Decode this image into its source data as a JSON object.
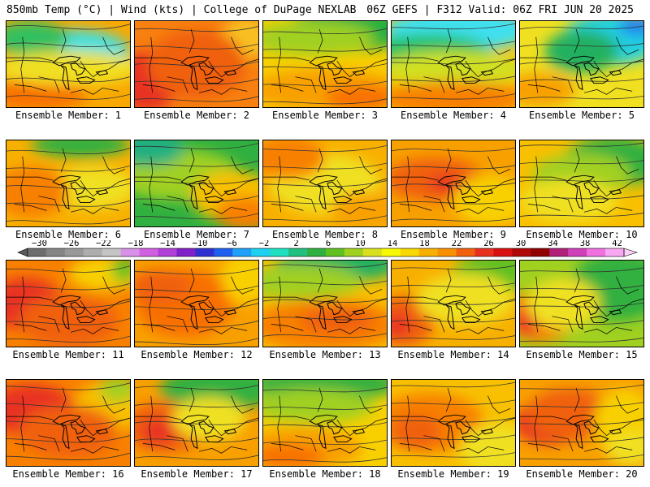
{
  "header": {
    "left": "850mb Temp (°C) | Wind (kts) | College of DuPage NEXLAB",
    "right": "06Z GEFS | F312 Valid: 06Z FRI JUN 20 2025"
  },
  "colorbar": {
    "labels": [
      "-30",
      "-26",
      "-22",
      "-18",
      "-14",
      "-10",
      "-6",
      "-2",
      "2",
      "6",
      "10",
      "14",
      "18",
      "22",
      "26",
      "30",
      "34",
      "38",
      "42"
    ],
    "colors": [
      "#6e6e6e",
      "#858585",
      "#999999",
      "#aeaeae",
      "#c4c4c4",
      "#d890e8",
      "#d060e0",
      "#b040d8",
      "#8020c8",
      "#3030d0",
      "#2060f0",
      "#20a0f8",
      "#20d0f0",
      "#20e0c0",
      "#20c080",
      "#30b040",
      "#60c020",
      "#a0d020",
      "#d8e020",
      "#f8f800",
      "#f8d800",
      "#f8b000",
      "#f89000",
      "#f06010",
      "#e83020",
      "#d81010",
      "#b00808",
      "#900000",
      "#b0207a",
      "#d040b8",
      "#f070e0",
      "#f8a8f0"
    ]
  },
  "panels": [
    {
      "label": "Ensemble Member: 1",
      "base": "#f8a800",
      "blobs": [
        [
          "#40e0e0",
          0.55,
          0.35,
          0.45,
          0.25
        ],
        [
          "#30c060",
          0.2,
          0.2,
          0.3,
          0.2
        ],
        [
          "#f87000",
          0.25,
          0.85,
          0.4,
          0.18
        ],
        [
          "#f0e020",
          0.5,
          0.55,
          0.6,
          0.2
        ]
      ]
    },
    {
      "label": "Ensemble Member: 2",
      "base": "#f88010",
      "blobs": [
        [
          "#e83020",
          0.1,
          0.7,
          0.25,
          0.35
        ],
        [
          "#f8c020",
          0.9,
          0.2,
          0.2,
          0.25
        ],
        [
          "#f06010",
          0.5,
          0.5,
          0.4,
          0.4
        ]
      ]
    },
    {
      "label": "Ensemble Member: 3",
      "base": "#f8d000",
      "blobs": [
        [
          "#20b040",
          0.7,
          0.1,
          0.5,
          0.25
        ],
        [
          "#a0d020",
          0.4,
          0.2,
          0.5,
          0.2
        ],
        [
          "#f8a000",
          0.5,
          0.8,
          0.6,
          0.25
        ],
        [
          "#f87000",
          0.8,
          0.9,
          0.3,
          0.15
        ]
      ]
    },
    {
      "label": "Ensemble Member: 4",
      "base": "#f8c000",
      "blobs": [
        [
          "#40e0f0",
          0.55,
          0.1,
          0.6,
          0.25
        ],
        [
          "#20c060",
          0.3,
          0.35,
          0.5,
          0.2
        ],
        [
          "#d0e020",
          0.5,
          0.55,
          0.6,
          0.2
        ],
        [
          "#f88000",
          0.5,
          0.9,
          0.6,
          0.2
        ]
      ]
    },
    {
      "label": "Ensemble Member: 5",
      "base": "#f0e020",
      "blobs": [
        [
          "#20d0e0",
          0.75,
          0.2,
          0.4,
          0.3
        ],
        [
          "#20b060",
          0.5,
          0.35,
          0.3,
          0.25
        ],
        [
          "#2080f0",
          0.95,
          0.05,
          0.15,
          0.12
        ],
        [
          "#f8a000",
          0.15,
          0.8,
          0.3,
          0.2
        ]
      ]
    },
    {
      "label": "Ensemble Member: 6",
      "base": "#f8b000",
      "blobs": [
        [
          "#30b040",
          0.6,
          0.05,
          0.4,
          0.15
        ],
        [
          "#f0e020",
          0.7,
          0.55,
          0.35,
          0.25
        ],
        [
          "#f88000",
          0.2,
          0.6,
          0.3,
          0.3
        ]
      ]
    },
    {
      "label": "Ensemble Member: 7",
      "base": "#30b040",
      "blobs": [
        [
          "#a0d020",
          0.35,
          0.4,
          0.5,
          0.3
        ],
        [
          "#f8c000",
          0.8,
          0.65,
          0.35,
          0.3
        ],
        [
          "#f88000",
          0.9,
          0.85,
          0.25,
          0.2
        ],
        [
          "#20b080",
          0.1,
          0.1,
          0.3,
          0.2
        ]
      ]
    },
    {
      "label": "Ensemble Member: 8",
      "base": "#f8b000",
      "blobs": [
        [
          "#f0e020",
          0.5,
          0.5,
          0.45,
          0.35
        ],
        [
          "#f88000",
          0.2,
          0.2,
          0.3,
          0.25
        ],
        [
          "#f8a000",
          0.85,
          0.8,
          0.3,
          0.2
        ]
      ]
    },
    {
      "label": "Ensemble Member: 9",
      "base": "#f8a000",
      "blobs": [
        [
          "#f06010",
          0.35,
          0.45,
          0.4,
          0.25
        ],
        [
          "#e83020",
          0.45,
          0.5,
          0.15,
          0.1
        ],
        [
          "#f8d000",
          0.8,
          0.7,
          0.3,
          0.3
        ]
      ]
    },
    {
      "label": "Ensemble Member: 10",
      "base": "#f8c000",
      "blobs": [
        [
          "#30b040",
          0.75,
          0.25,
          0.4,
          0.3
        ],
        [
          "#a0d020",
          0.5,
          0.4,
          0.4,
          0.25
        ],
        [
          "#f0e020",
          0.4,
          0.7,
          0.4,
          0.25
        ]
      ]
    },
    {
      "label": "Ensemble Member: 11",
      "base": "#f88000",
      "blobs": [
        [
          "#e83020",
          0.15,
          0.5,
          0.3,
          0.3
        ],
        [
          "#f8d000",
          0.8,
          0.15,
          0.3,
          0.2
        ],
        [
          "#60c020",
          0.95,
          0.1,
          0.1,
          0.15
        ],
        [
          "#f06010",
          0.5,
          0.7,
          0.4,
          0.3
        ]
      ]
    },
    {
      "label": "Ensemble Member: 12",
      "base": "#f8a000",
      "blobs": [
        [
          "#f87000",
          0.4,
          0.5,
          0.4,
          0.4
        ],
        [
          "#f8d000",
          0.9,
          0.2,
          0.2,
          0.3
        ],
        [
          "#f06010",
          0.2,
          0.3,
          0.25,
          0.2
        ]
      ]
    },
    {
      "label": "Ensemble Member: 13",
      "base": "#f8c000",
      "blobs": [
        [
          "#20b060",
          0.6,
          0.05,
          0.5,
          0.2
        ],
        [
          "#a0d020",
          0.3,
          0.25,
          0.5,
          0.2
        ],
        [
          "#f88000",
          0.5,
          0.75,
          0.6,
          0.3
        ],
        [
          "#f06010",
          0.6,
          0.7,
          0.3,
          0.15
        ]
      ]
    },
    {
      "label": "Ensemble Member: 14",
      "base": "#f8b000",
      "blobs": [
        [
          "#f06010",
          0.1,
          0.7,
          0.25,
          0.3
        ],
        [
          "#e83020",
          0.05,
          0.75,
          0.1,
          0.15
        ],
        [
          "#60c020",
          0.85,
          0.15,
          0.35,
          0.25
        ],
        [
          "#f0e020",
          0.6,
          0.45,
          0.4,
          0.3
        ]
      ]
    },
    {
      "label": "Ensemble Member: 15",
      "base": "#a0d020",
      "blobs": [
        [
          "#30b040",
          0.8,
          0.3,
          0.4,
          0.4
        ],
        [
          "#f88000",
          0.15,
          0.65,
          0.3,
          0.3
        ],
        [
          "#e83020",
          0.05,
          0.7,
          0.1,
          0.15
        ],
        [
          "#f0e020",
          0.35,
          0.5,
          0.3,
          0.3
        ]
      ]
    },
    {
      "label": "Ensemble Member: 16",
      "base": "#f88000",
      "blobs": [
        [
          "#e83020",
          0.2,
          0.35,
          0.35,
          0.3
        ],
        [
          "#f8c000",
          0.85,
          0.3,
          0.3,
          0.3
        ],
        [
          "#a0d020",
          0.9,
          0.1,
          0.15,
          0.15
        ],
        [
          "#f06010",
          0.5,
          0.6,
          0.4,
          0.3
        ]
      ]
    },
    {
      "label": "Ensemble Member: 17",
      "base": "#f8a000",
      "blobs": [
        [
          "#30b040",
          0.7,
          0.1,
          0.5,
          0.25
        ],
        [
          "#f06010",
          0.25,
          0.55,
          0.35,
          0.3
        ],
        [
          "#e83020",
          0.2,
          0.6,
          0.15,
          0.15
        ],
        [
          "#f0e020",
          0.6,
          0.45,
          0.3,
          0.25
        ]
      ]
    },
    {
      "label": "Ensemble Member: 18",
      "base": "#f8d000",
      "blobs": [
        [
          "#30b040",
          0.5,
          0.05,
          0.6,
          0.2
        ],
        [
          "#a0d020",
          0.4,
          0.3,
          0.5,
          0.2
        ],
        [
          "#f8a000",
          0.3,
          0.8,
          0.5,
          0.25
        ],
        [
          "#f87000",
          0.2,
          0.9,
          0.3,
          0.15
        ]
      ]
    },
    {
      "label": "Ensemble Member: 19",
      "base": "#f8c000",
      "blobs": [
        [
          "#f88000",
          0.3,
          0.5,
          0.45,
          0.35
        ],
        [
          "#f06010",
          0.2,
          0.6,
          0.2,
          0.2
        ],
        [
          "#f0e020",
          0.85,
          0.8,
          0.3,
          0.3
        ]
      ]
    },
    {
      "label": "Ensemble Member: 20",
      "base": "#f8a000",
      "blobs": [
        [
          "#e83020",
          0.25,
          0.5,
          0.3,
          0.25
        ],
        [
          "#f06010",
          0.4,
          0.4,
          0.35,
          0.3
        ],
        [
          "#f8d000",
          0.85,
          0.5,
          0.25,
          0.4
        ],
        [
          "#f0e020",
          0.9,
          0.8,
          0.2,
          0.2
        ]
      ]
    }
  ]
}
